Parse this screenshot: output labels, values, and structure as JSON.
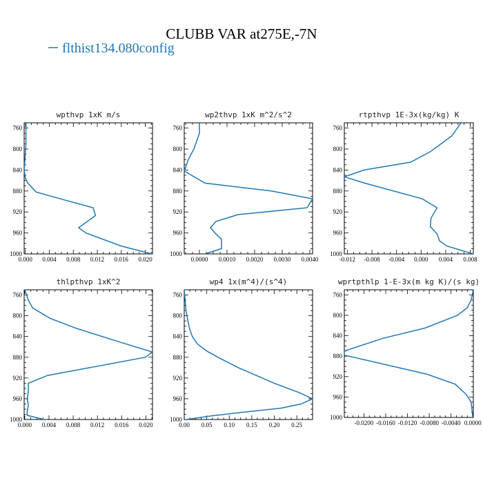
{
  "figure": {
    "title": "CLUBB VAR at275E,-7N",
    "legend_label": "flthist134.080config",
    "line_color": "#1f77b4"
  },
  "chart_data": [
    {
      "type": "line",
      "title": "wpthvp   1xK m/s",
      "xlim": [
        -0.0002,
        0.0212
      ],
      "ylim": [
        1000,
        750
      ],
      "xticks": [
        0.0,
        0.004,
        0.008,
        0.012,
        0.016,
        0.02
      ],
      "xtick_labels": [
        "0.000",
        "0.004",
        "0.008",
        "0.012",
        "0.016",
        "0.020"
      ],
      "yticks": [
        760,
        800,
        840,
        880,
        920,
        960,
        1000
      ],
      "series": [
        {
          "x": [
            0.0001,
            0.0001,
            0.0001,
            0.0,
            -0.0002,
            0.0,
            0.0004,
            0.0018,
            0.0065,
            0.0113,
            0.0117,
            0.0101,
            0.0089,
            0.0101,
            0.016,
            0.0211
          ],
          "y": [
            750,
            770,
            790,
            810,
            840,
            855,
            865,
            882,
            897,
            912,
            927,
            940,
            950,
            960,
            985,
            1000
          ]
        }
      ]
    },
    {
      "type": "line",
      "title": "wp2thvp   1xK m^2/s^2",
      "xlim": [
        -0.00055,
        0.0041
      ],
      "ylim": [
        1000,
        750
      ],
      "xticks": [
        0.0,
        0.001,
        0.002,
        0.003,
        0.004
      ],
      "xtick_labels": [
        "0.0000",
        "0.0010",
        "0.0020",
        "0.0030",
        "0.0040"
      ],
      "yticks": [
        760,
        800,
        840,
        880,
        920,
        960,
        1000
      ],
      "series": [
        {
          "x": [
            0.0,
            0.0,
            -0.0002,
            -0.0004,
            -0.00055,
            0.0002,
            0.0026,
            0.0041,
            0.0039,
            0.0014,
            0.0006,
            0.0004,
            0.0006,
            0.0008,
            0.0008,
            0.0002
          ],
          "y": [
            750,
            770,
            800,
            820,
            842,
            865,
            880,
            895,
            912,
            925,
            938,
            950,
            962,
            972,
            990,
            1000
          ]
        }
      ]
    },
    {
      "type": "line",
      "title": "rtpthvp   1E-3x(kg/kg) K",
      "xlim": [
        -0.0125,
        0.0085
      ],
      "ylim": [
        1000,
        750
      ],
      "xticks": [
        -0.012,
        -0.008,
        -0.004,
        0.0,
        0.004,
        0.008
      ],
      "xtick_labels": [
        "-0.012",
        "-0.008",
        "-0.004",
        "0.000",
        "0.004",
        "0.008"
      ],
      "yticks": [
        760,
        800,
        840,
        880,
        920,
        960,
        1000
      ],
      "series": [
        {
          "x": [
            0.0065,
            0.005,
            0.0015,
            -0.0017,
            -0.0093,
            -0.0125,
            -0.0092,
            0.0002,
            0.0026,
            0.0016,
            0.0015,
            0.0026,
            0.003,
            0.0042,
            0.0085
          ],
          "y": [
            750,
            775,
            805,
            825,
            840,
            853,
            865,
            895,
            912,
            932,
            948,
            962,
            975,
            985,
            1000
          ]
        }
      ]
    },
    {
      "type": "line",
      "title": "thlpthvp   1xK^2",
      "xlim": [
        -0.0001,
        0.0211
      ],
      "ylim": [
        1000,
        750
      ],
      "xticks": [
        0.0,
        0.004,
        0.008,
        0.012,
        0.016,
        0.02
      ],
      "xtick_labels": [
        "0.000",
        "0.004",
        "0.008",
        "0.012",
        "0.016",
        "0.020"
      ],
      "yticks": [
        760,
        800,
        840,
        880,
        920,
        960,
        1000
      ],
      "series": [
        {
          "x": [
            0.0,
            0.0006,
            0.0013,
            0.0042,
            0.0087,
            0.0155,
            0.0211,
            0.0199,
            0.0038,
            0.0006,
            0.0006,
            0.0004,
            0.0006,
            0.0004,
            0.0004,
            0.0032
          ],
          "y": [
            750,
            770,
            785,
            805,
            825,
            850,
            870,
            880,
            915,
            930,
            945,
            960,
            972,
            985,
            992,
            1000
          ]
        }
      ]
    },
    {
      "type": "line",
      "title": "wp4   1x(m^4)/(s^4)",
      "xlim": [
        0.0,
        0.285
      ],
      "ylim": [
        1000,
        750
      ],
      "xticks": [
        0.0,
        0.05,
        0.1,
        0.15,
        0.2,
        0.25
      ],
      "xtick_labels": [
        "0.00",
        "0.05",
        "0.10",
        "0.15",
        "0.20",
        "0.25"
      ],
      "yticks": [
        760,
        800,
        840,
        880,
        920,
        960,
        1000
      ],
      "series": [
        {
          "x": [
            0.0,
            0.002,
            0.004,
            0.008,
            0.012,
            0.018,
            0.03,
            0.05,
            0.075,
            0.12,
            0.2,
            0.255,
            0.285,
            0.26,
            0.215,
            0.13,
            0.06,
            0.005
          ],
          "y": [
            750,
            770,
            790,
            810,
            825,
            840,
            855,
            868,
            880,
            900,
            930,
            948,
            960,
            970,
            978,
            986,
            993,
            1000
          ]
        }
      ]
    },
    {
      "type": "line",
      "title": "wprtpthlp   1-E-3x(m kg K)/(s kg)",
      "xlim": [
        -0.0236,
        0.0001
      ],
      "ylim": [
        1000,
        750
      ],
      "xticks": [
        -0.02,
        -0.016,
        -0.012,
        -0.008,
        -0.004,
        0.0
      ],
      "xtick_labels": [
        "-0.0200",
        "-0.0160",
        "-0.0120",
        "-0.0080",
        "-0.0040",
        "0.0000"
      ],
      "yticks": [
        760,
        800,
        840,
        880,
        920,
        960,
        1000
      ],
      "series": [
        {
          "x": [
            0.0001,
            -0.0003,
            -0.001,
            -0.0028,
            -0.0088,
            -0.0165,
            -0.0236,
            -0.0236,
            -0.0085,
            -0.0032,
            -0.0012,
            -0.0003,
            0.0
          ],
          "y": [
            750,
            770,
            785,
            800,
            825,
            845,
            870,
            878,
            915,
            935,
            955,
            970,
            1000
          ]
        }
      ]
    }
  ]
}
